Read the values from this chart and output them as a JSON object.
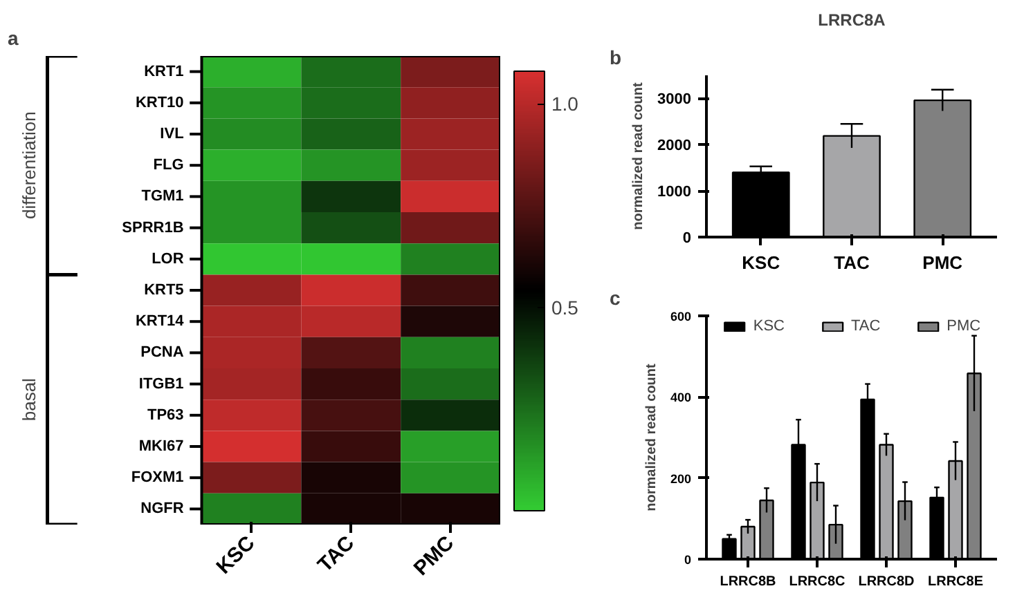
{
  "chart_data": [
    {
      "type": "heatmap",
      "annotations": [
        "a",
        "differentiation",
        "basal"
      ],
      "categories": [
        "KSC",
        "TAC",
        "PMC"
      ],
      "y_categories": [
        "KRT1",
        "KRT10",
        "IVL",
        "FLG",
        "TGM1",
        "SPRR1B",
        "LOR",
        "KRT5",
        "KRT14",
        "PCNA",
        "ITGB1",
        "TP63",
        "MKI67",
        "FOXM1",
        "NGFR"
      ],
      "cells": [
        [
          0.08,
          0.25,
          0.85
        ],
        [
          0.15,
          0.25,
          0.9
        ],
        [
          0.17,
          0.28,
          0.93
        ],
        [
          0.08,
          0.15,
          0.93
        ],
        [
          0.15,
          0.4,
          1.05
        ],
        [
          0.15,
          0.33,
          0.82
        ],
        [
          0.02,
          0.02,
          0.2
        ],
        [
          0.92,
          1.05,
          0.7
        ],
        [
          0.97,
          1.0,
          0.62
        ],
        [
          0.97,
          0.75,
          0.2
        ],
        [
          0.95,
          0.68,
          0.25
        ],
        [
          1.02,
          0.72,
          0.42
        ],
        [
          1.07,
          0.68,
          0.12
        ],
        [
          0.85,
          0.6,
          0.15
        ],
        [
          0.2,
          0.6,
          0.6
        ]
      ],
      "clim": [
        0,
        1.08
      ],
      "cticks": [
        {
          "value": 0.5,
          "label": "0.5"
        },
        {
          "value": 1.0,
          "label": "1.0"
        }
      ]
    },
    {
      "type": "bar",
      "title": "LRRC8A",
      "annotations": [
        "b"
      ],
      "ylabel": "normalized read count",
      "categories": [
        "KSC",
        "TAC",
        "PMC"
      ],
      "values": [
        1400,
        2190,
        2960
      ],
      "errors": [
        130,
        260,
        230
      ],
      "colors": [
        "#000000",
        "#a6a6a8",
        "#808080"
      ],
      "ylim": [
        0,
        3500
      ],
      "yticks": [
        0,
        1000,
        2000,
        3000
      ]
    },
    {
      "type": "bar",
      "annotations": [
        "c"
      ],
      "ylabel": "normalized read count",
      "categories": [
        "LRRC8B",
        "LRRC8C",
        "LRRC8D",
        "LRRC8E"
      ],
      "series": [
        {
          "name": "KSC",
          "color": "#000000",
          "values": [
            50,
            282,
            394,
            152
          ],
          "errors": [
            10,
            62,
            38,
            25
          ]
        },
        {
          "name": "TAC",
          "color": "#a6a6a8",
          "values": [
            80,
            189,
            282,
            242
          ],
          "errors": [
            17,
            46,
            27,
            47
          ]
        },
        {
          "name": "PMC",
          "color": "#808080",
          "values": [
            145,
            85,
            143,
            458
          ],
          "errors": [
            30,
            47,
            47,
            93
          ]
        }
      ],
      "ylim": [
        0,
        600
      ],
      "yticks": [
        0,
        200,
        400,
        600
      ],
      "legend": "top"
    }
  ]
}
